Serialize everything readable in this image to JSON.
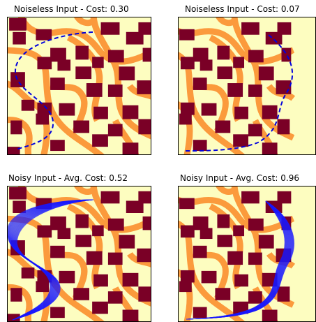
{
  "colors": {
    "background": "#fdfdc0",
    "band": "#fb9a3c",
    "obstacle": "#7a0026",
    "path_deterministic": "#0000dd",
    "path_noisy": "#1a1aff"
  },
  "panels": [
    {
      "title": "Noiseless Input - Cost: 0.30",
      "variant": "left",
      "path_style": "dashed"
    },
    {
      "title": "Noiseless Input - Cost: 0.07",
      "variant": "right",
      "path_style": "dashed"
    },
    {
      "title": "Noisy Input - Avg. Cost: 0.52",
      "variant": "left",
      "path_style": "bundle"
    },
    {
      "title": "Noisy Input - Avg. Cost: 0.96",
      "variant": "right",
      "path_style": "bundle"
    }
  ]
}
